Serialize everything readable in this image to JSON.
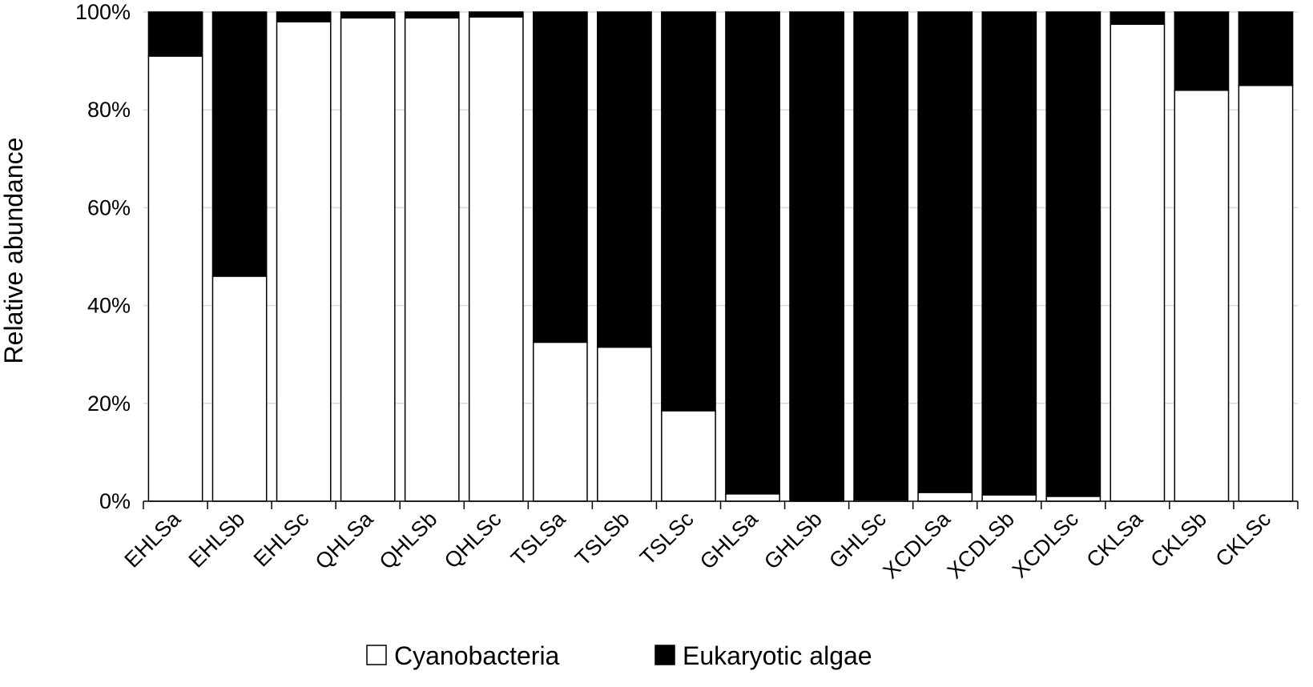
{
  "chart_data": {
    "type": "bar",
    "stacked": true,
    "percent": true,
    "title": "",
    "xlabel": "",
    "ylabel": "Relative abundance",
    "ylim": [
      0,
      100
    ],
    "yticks": [
      "0%",
      "20%",
      "40%",
      "60%",
      "80%",
      "100%"
    ],
    "grid": "horizontal",
    "legend_position": "bottom",
    "categories": [
      "EHLSa",
      "EHLSb",
      "EHLSc",
      "QHLSa",
      "QHLSb",
      "QHLSc",
      "TSLSa",
      "TSLSb",
      "TSLSc",
      "GHLSa",
      "GHLSb",
      "GHLSc",
      "XCDLSa",
      "XCDLSb",
      "XCDLSc",
      "CKLSa",
      "CKLSb",
      "CKLSc"
    ],
    "series": [
      {
        "name": "Cyanobacteria",
        "color": "#ffffff",
        "values": [
          91,
          46,
          98,
          98.8,
          98.8,
          99,
          32.5,
          31.5,
          18.5,
          1.5,
          0,
          0.3,
          1.8,
          1.3,
          1,
          97.5,
          84,
          85
        ]
      },
      {
        "name": "Eukaryotic algae",
        "color": "#000000",
        "values": [
          9,
          54,
          2,
          1.2,
          1.2,
          1,
          67.5,
          68.5,
          81.5,
          98.5,
          100,
          99.7,
          98.2,
          98.7,
          99,
          2.5,
          16,
          15
        ]
      }
    ]
  }
}
